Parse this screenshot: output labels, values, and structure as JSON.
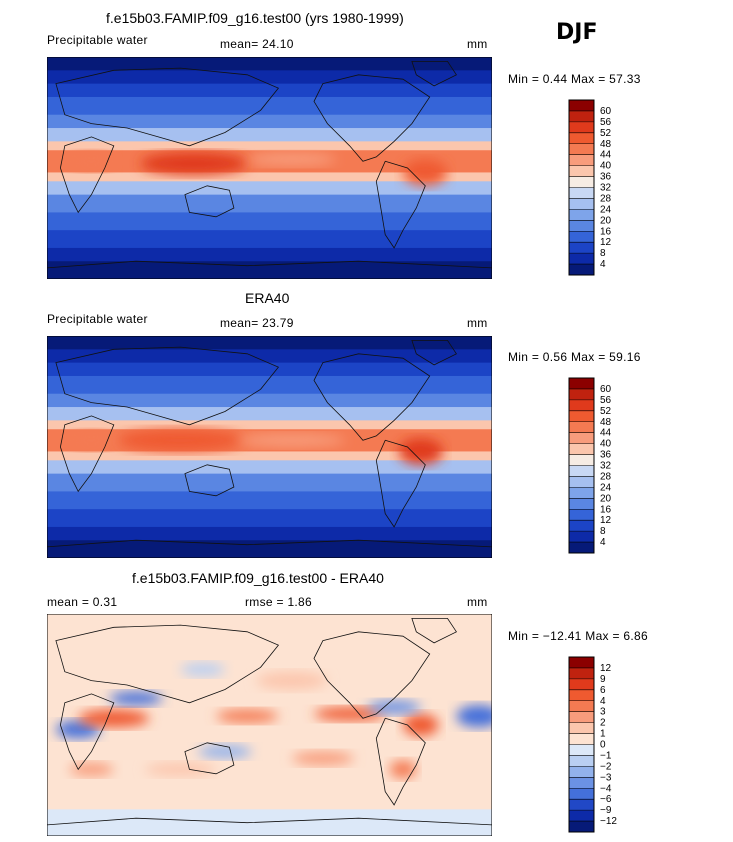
{
  "season": "DJF",
  "panels": [
    {
      "title": "f.e15b03.FAMIP.f09_g16.test00 (yrs 1980-1999)",
      "left_label": "Precipitable water",
      "mean_text": "mean=  24.10",
      "units": "mm",
      "minmax_text": "Min =   0.44 Max =  57.33",
      "colorbar": {
        "levels": [
          "60",
          "56",
          "52",
          "48",
          "44",
          "40",
          "36",
          "32",
          "28",
          "24",
          "20",
          "16",
          "12",
          "8",
          "4"
        ],
        "colors": [
          "#8b0000",
          "#c0220f",
          "#e03a1c",
          "#ef5a30",
          "#f47a52",
          "#f89c7c",
          "#fbc6ad",
          "#f6ece4",
          "#c8d8f4",
          "#a6c0f0",
          "#7ea4ea",
          "#5a86e2",
          "#3564d8",
          "#1c44c6",
          "#0d2aa8",
          "#061a78"
        ]
      },
      "field": "model"
    },
    {
      "title": "ERA40",
      "left_label": "Precipitable water",
      "mean_text": "mean=  23.79",
      "units": "mm",
      "minmax_text": "Min =   0.56 Max =  59.16",
      "colorbar": {
        "levels": [
          "60",
          "56",
          "52",
          "48",
          "44",
          "40",
          "36",
          "32",
          "28",
          "24",
          "20",
          "16",
          "12",
          "8",
          "4"
        ],
        "colors": [
          "#8b0000",
          "#c0220f",
          "#e03a1c",
          "#ef5a30",
          "#f47a52",
          "#f89c7c",
          "#fbc6ad",
          "#f6ece4",
          "#c8d8f4",
          "#a6c0f0",
          "#7ea4ea",
          "#5a86e2",
          "#3564d8",
          "#1c44c6",
          "#0d2aa8",
          "#061a78"
        ]
      },
      "field": "obs"
    },
    {
      "title": "f.e15b03.FAMIP.f09_g16.test00 - ERA40",
      "left_label": "mean =   0.31",
      "mean_text": "rmse =   1.86",
      "units": "mm",
      "minmax_text": "Min = −12.41 Max =   6.86",
      "colorbar": {
        "levels": [
          "12",
          "9",
          "6",
          "4",
          "3",
          "2",
          "1",
          "0",
          "−1",
          "−2",
          "−3",
          "−4",
          "−6",
          "−9",
          "−12"
        ],
        "colors": [
          "#8b0000",
          "#c0220f",
          "#e03a1c",
          "#ef5a30",
          "#f47a52",
          "#f89c7c",
          "#fbc6ad",
          "#fde3d2",
          "#dce8f8",
          "#b9cff2",
          "#92b2ec",
          "#6b92e4",
          "#4470da",
          "#2148c6",
          "#0d2aa8",
          "#061a78"
        ]
      },
      "field": "diff"
    }
  ],
  "chart_data": [
    {
      "type": "heatmap",
      "title": "f.e15b03.FAMIP.f09_g16.test00 (yrs 1980-1999)",
      "variable": "Precipitable water",
      "units": "mm",
      "mean": 24.1,
      "min": 0.44,
      "max": 57.33,
      "levels": [
        4,
        8,
        12,
        16,
        20,
        24,
        28,
        32,
        36,
        40,
        44,
        48,
        52,
        56,
        60
      ]
    },
    {
      "type": "heatmap",
      "title": "ERA40",
      "variable": "Precipitable water",
      "units": "mm",
      "mean": 23.79,
      "min": 0.56,
      "max": 59.16,
      "levels": [
        4,
        8,
        12,
        16,
        20,
        24,
        28,
        32,
        36,
        40,
        44,
        48,
        52,
        56,
        60
      ]
    },
    {
      "type": "heatmap",
      "title": "f.e15b03.FAMIP.f09_g16.test00 - ERA40",
      "units": "mm",
      "mean": 0.31,
      "rmse": 1.86,
      "min": -12.41,
      "max": 6.86,
      "levels": [
        -12,
        -9,
        -6,
        -4,
        -3,
        -2,
        -1,
        0,
        1,
        2,
        3,
        4,
        6,
        9,
        12
      ]
    }
  ]
}
